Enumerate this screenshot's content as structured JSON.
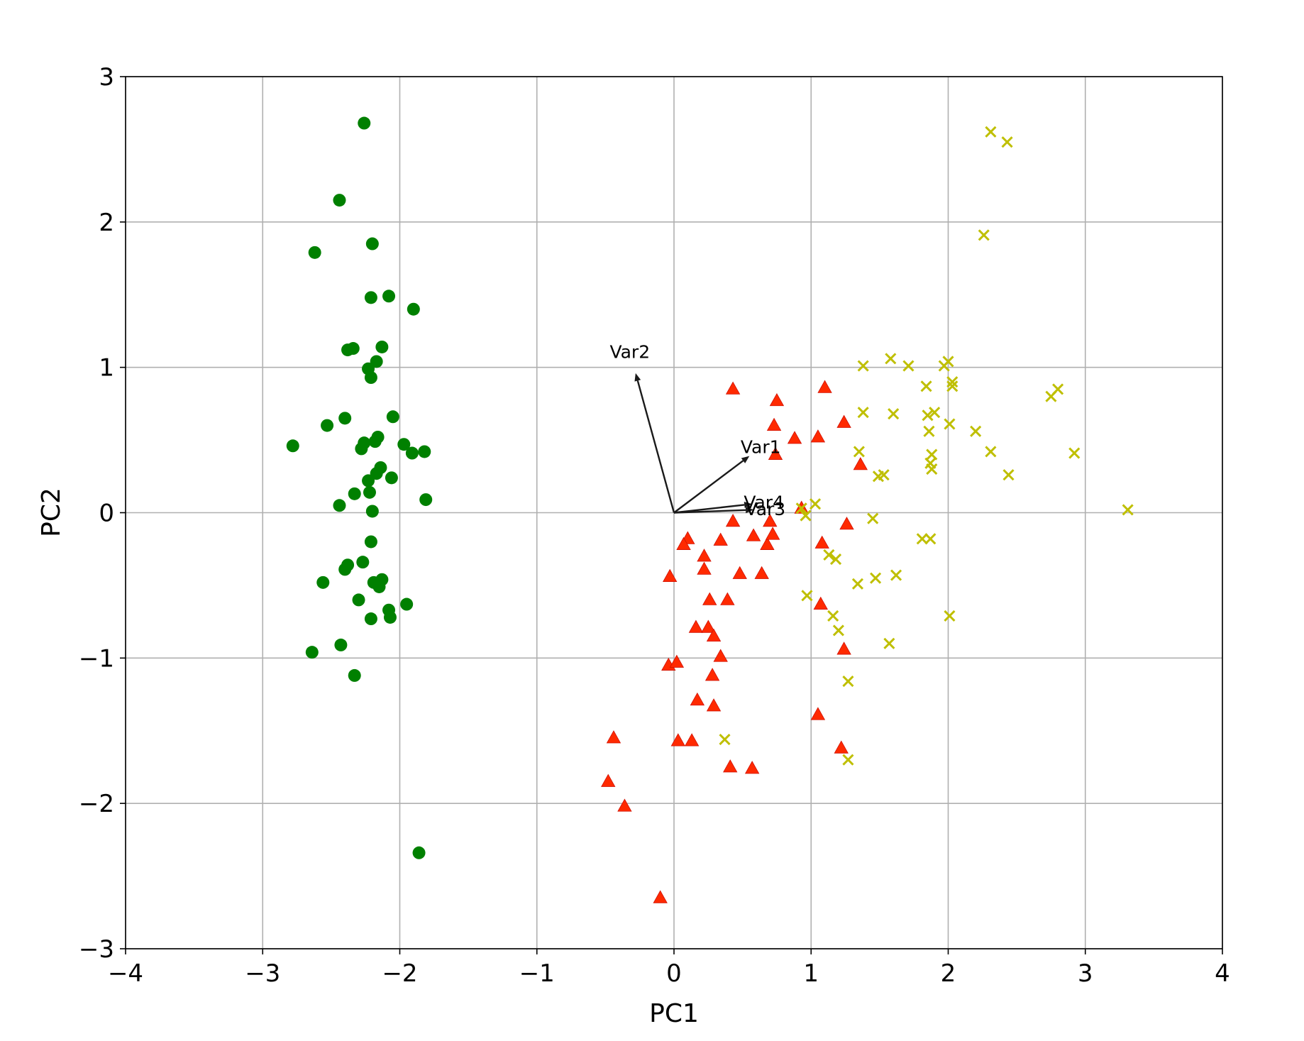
{
  "chart_data": {
    "type": "scatter",
    "title": "",
    "xlabel": "PC1",
    "ylabel": "PC2",
    "xlim": [
      -4,
      4
    ],
    "ylim": [
      -3,
      3
    ],
    "xticks": [
      -4,
      -3,
      -2,
      -1,
      0,
      1,
      2,
      3,
      4
    ],
    "yticks": [
      -3,
      -2,
      -1,
      0,
      1,
      2,
      3
    ],
    "xtick_labels": [
      "−4",
      "−3",
      "−2",
      "−1",
      "0",
      "1",
      "2",
      "3",
      "4"
    ],
    "ytick_labels": [
      "−3",
      "−2",
      "−1",
      "0",
      "1",
      "2",
      "3"
    ],
    "grid": true,
    "legend": "none",
    "series": [
      {
        "marker": "circle",
        "color": "#008000",
        "points": [
          [
            -2.26,
            2.68
          ],
          [
            -2.44,
            2.15
          ],
          [
            -2.62,
            1.79
          ],
          [
            -2.2,
            1.85
          ],
          [
            -2.21,
            1.48
          ],
          [
            -2.08,
            1.49
          ],
          [
            -1.9,
            1.4
          ],
          [
            -2.38,
            1.12
          ],
          [
            -2.34,
            1.13
          ],
          [
            -2.13,
            1.14
          ],
          [
            -2.17,
            1.04
          ],
          [
            -2.23,
            0.99
          ],
          [
            -2.21,
            0.93
          ],
          [
            -2.4,
            0.65
          ],
          [
            -2.53,
            0.6
          ],
          [
            -2.05,
            0.66
          ],
          [
            -2.78,
            0.46
          ],
          [
            -2.28,
            0.44
          ],
          [
            -2.26,
            0.48
          ],
          [
            -2.18,
            0.49
          ],
          [
            -2.16,
            0.52
          ],
          [
            -1.97,
            0.47
          ],
          [
            -1.91,
            0.41
          ],
          [
            -1.82,
            0.42
          ],
          [
            -2.14,
            0.31
          ],
          [
            -2.17,
            0.27
          ],
          [
            -2.23,
            0.22
          ],
          [
            -2.06,
            0.24
          ],
          [
            -2.33,
            0.13
          ],
          [
            -2.22,
            0.14
          ],
          [
            -2.44,
            0.05
          ],
          [
            -2.2,
            0.01
          ],
          [
            -1.81,
            0.09
          ],
          [
            -2.21,
            -0.2
          ],
          [
            -2.38,
            -0.36
          ],
          [
            -2.4,
            -0.39
          ],
          [
            -2.27,
            -0.34
          ],
          [
            -2.19,
            -0.48
          ],
          [
            -2.13,
            -0.46
          ],
          [
            -2.15,
            -0.51
          ],
          [
            -2.56,
            -0.48
          ],
          [
            -2.3,
            -0.6
          ],
          [
            -2.08,
            -0.67
          ],
          [
            -1.95,
            -0.63
          ],
          [
            -2.07,
            -0.72
          ],
          [
            -2.21,
            -0.73
          ],
          [
            -2.64,
            -0.96
          ],
          [
            -2.43,
            -0.91
          ],
          [
            -2.33,
            -1.12
          ],
          [
            -1.86,
            -2.34
          ]
        ]
      },
      {
        "marker": "triangle",
        "color": "#ff2a00",
        "points": [
          [
            0.43,
            0.85
          ],
          [
            1.1,
            0.86
          ],
          [
            0.75,
            0.77
          ],
          [
            0.73,
            0.6
          ],
          [
            1.24,
            0.62
          ],
          [
            0.88,
            0.51
          ],
          [
            1.05,
            0.52
          ],
          [
            0.74,
            0.4
          ],
          [
            1.36,
            0.33
          ],
          [
            0.93,
            0.03
          ],
          [
            0.43,
            -0.06
          ],
          [
            0.7,
            -0.06
          ],
          [
            1.26,
            -0.08
          ],
          [
            0.1,
            -0.18
          ],
          [
            0.34,
            -0.19
          ],
          [
            0.58,
            -0.16
          ],
          [
            0.07,
            -0.22
          ],
          [
            0.68,
            -0.22
          ],
          [
            0.72,
            -0.15
          ],
          [
            1.08,
            -0.21
          ],
          [
            0.22,
            -0.3
          ],
          [
            0.22,
            -0.39
          ],
          [
            0.48,
            -0.42
          ],
          [
            0.64,
            -0.42
          ],
          [
            -0.03,
            -0.44
          ],
          [
            0.26,
            -0.6
          ],
          [
            0.39,
            -0.6
          ],
          [
            1.07,
            -0.63
          ],
          [
            0.16,
            -0.79
          ],
          [
            0.25,
            -0.79
          ],
          [
            0.29,
            -0.85
          ],
          [
            1.24,
            -0.94
          ],
          [
            0.34,
            -0.99
          ],
          [
            -0.04,
            -1.05
          ],
          [
            0.02,
            -1.03
          ],
          [
            0.28,
            -1.12
          ],
          [
            0.17,
            -1.29
          ],
          [
            0.29,
            -1.33
          ],
          [
            1.05,
            -1.39
          ],
          [
            -0.44,
            -1.55
          ],
          [
            0.03,
            -1.57
          ],
          [
            0.13,
            -1.57
          ],
          [
            1.22,
            -1.62
          ],
          [
            0.41,
            -1.75
          ],
          [
            0.57,
            -1.76
          ],
          [
            -0.48,
            -1.85
          ],
          [
            -0.36,
            -2.02
          ],
          [
            -0.1,
            -2.65
          ]
        ]
      },
      {
        "marker": "x",
        "color": "#bfbf00",
        "points": [
          [
            2.31,
            2.62
          ],
          [
            2.43,
            2.55
          ],
          [
            2.26,
            1.91
          ],
          [
            1.58,
            1.06
          ],
          [
            1.38,
            1.01
          ],
          [
            1.71,
            1.01
          ],
          [
            1.97,
            1.01
          ],
          [
            2.0,
            1.04
          ],
          [
            1.84,
            0.87
          ],
          [
            2.03,
            0.87
          ],
          [
            2.03,
            0.9
          ],
          [
            2.75,
            0.8
          ],
          [
            2.8,
            0.85
          ],
          [
            1.38,
            0.69
          ],
          [
            1.6,
            0.68
          ],
          [
            1.85,
            0.67
          ],
          [
            1.9,
            0.69
          ],
          [
            2.01,
            0.61
          ],
          [
            1.86,
            0.56
          ],
          [
            2.2,
            0.56
          ],
          [
            1.35,
            0.42
          ],
          [
            1.88,
            0.4
          ],
          [
            1.87,
            0.34
          ],
          [
            1.88,
            0.3
          ],
          [
            2.31,
            0.42
          ],
          [
            2.92,
            0.41
          ],
          [
            1.49,
            0.25
          ],
          [
            1.53,
            0.26
          ],
          [
            2.44,
            0.26
          ],
          [
            1.03,
            0.06
          ],
          [
            0.93,
            0.03
          ],
          [
            0.96,
            -0.02
          ],
          [
            1.45,
            -0.04
          ],
          [
            3.31,
            0.02
          ],
          [
            1.81,
            -0.18
          ],
          [
            1.87,
            -0.18
          ],
          [
            1.13,
            -0.29
          ],
          [
            1.18,
            -0.32
          ],
          [
            1.34,
            -0.49
          ],
          [
            1.47,
            -0.45
          ],
          [
            1.62,
            -0.43
          ],
          [
            0.97,
            -0.57
          ],
          [
            1.16,
            -0.71
          ],
          [
            1.2,
            -0.81
          ],
          [
            2.01,
            -0.71
          ],
          [
            1.57,
            -0.9
          ],
          [
            1.27,
            -1.16
          ],
          [
            0.37,
            -1.56
          ],
          [
            1.27,
            -1.7
          ]
        ]
      }
    ],
    "loadings": [
      {
        "label": "Var1",
        "x": 0.55,
        "y": 0.39
      },
      {
        "label": "Var2",
        "x": -0.28,
        "y": 0.96
      },
      {
        "label": "Var3",
        "x": 0.58,
        "y": 0.02
      },
      {
        "label": "Var4",
        "x": 0.57,
        "y": 0.06
      }
    ]
  }
}
